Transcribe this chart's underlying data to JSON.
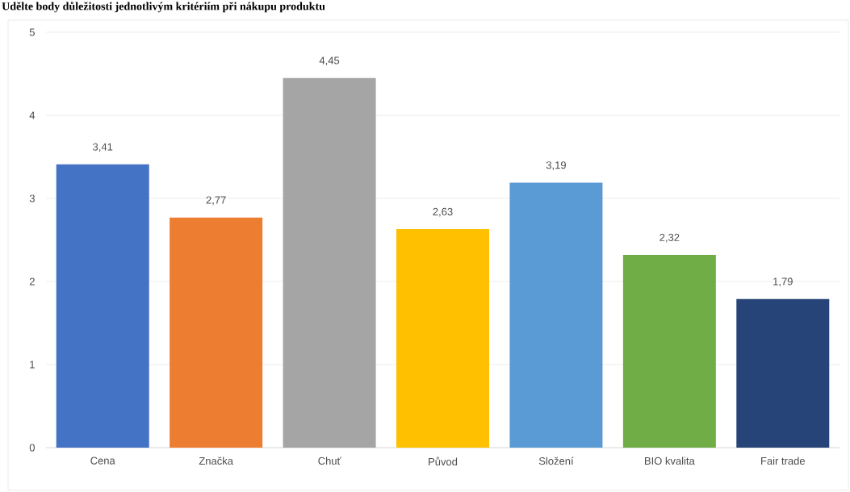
{
  "chart_data": {
    "type": "bar",
    "title": "Udělte body důležitosti jednotlivým kritériím při nákupu produktu",
    "categories": [
      "Cena",
      "Značka",
      "Chuť",
      "Původ",
      "Složení",
      "BIO kvalita",
      "Fair trade"
    ],
    "values": [
      3.41,
      2.77,
      4.45,
      2.63,
      3.19,
      2.32,
      1.79
    ],
    "colors": [
      "#4472c4",
      "#ed7d31",
      "#a5a5a5",
      "#ffc000",
      "#5b9bd5",
      "#70ad47",
      "#264478"
    ],
    "value_labels": [
      "3,41",
      "2,77",
      "4,45",
      "2,63",
      "3,19",
      "2,32",
      "1,79"
    ],
    "ylim": [
      0,
      5
    ],
    "yticks": [
      0,
      1,
      2,
      3,
      4,
      5
    ],
    "grid": "y"
  }
}
